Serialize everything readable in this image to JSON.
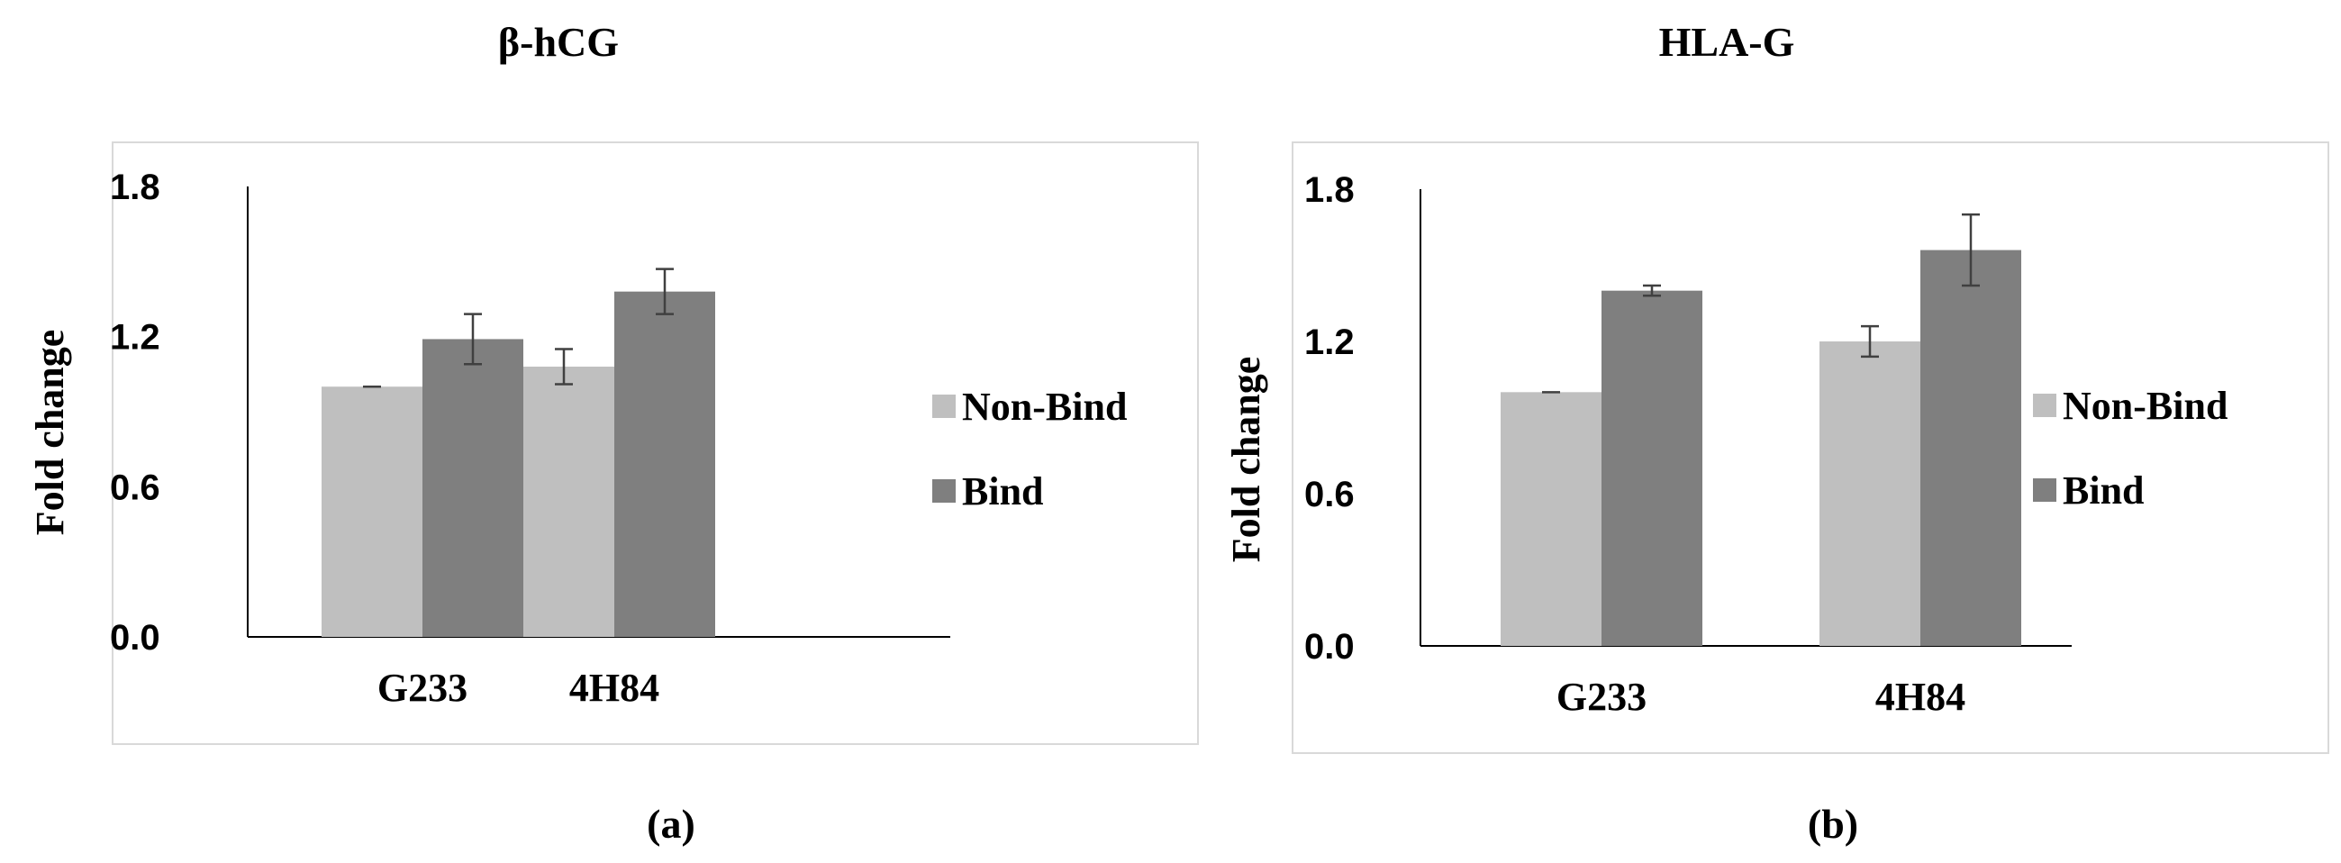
{
  "chart_data": [
    {
      "type": "bar",
      "title": "β-hCG",
      "caption": "(a)",
      "ylabel": "Fold change",
      "xlabel": "",
      "ylim": [
        0,
        1.8
      ],
      "yticks": [
        "0.0",
        "0.6",
        "1.2",
        "1.8"
      ],
      "categories": [
        "G233",
        "4H84"
      ],
      "legend_position": "right",
      "series": [
        {
          "name": "Non-Bind",
          "color": "#bfbfbf",
          "values": [
            1.0,
            1.08
          ],
          "errors": [
            0.0,
            0.07
          ]
        },
        {
          "name": "Bind",
          "color": "#7f7f7f",
          "values": [
            1.19,
            1.38
          ],
          "errors": [
            0.1,
            0.09
          ]
        }
      ]
    },
    {
      "type": "bar",
      "title": "HLA-G",
      "caption": "(b)",
      "ylabel": "Fold change",
      "xlabel": "",
      "ylim": [
        0,
        1.8
      ],
      "yticks": [
        "0.0",
        "0.6",
        "1.2",
        "1.8"
      ],
      "categories": [
        "G233",
        "4H84"
      ],
      "legend_position": "right",
      "series": [
        {
          "name": "Non-Bind",
          "color": "#bfbfbf",
          "values": [
            1.0,
            1.2
          ],
          "errors": [
            0.0,
            0.06
          ]
        },
        {
          "name": "Bind",
          "color": "#7f7f7f",
          "values": [
            1.4,
            1.56
          ],
          "errors": [
            0.02,
            0.14
          ]
        }
      ]
    }
  ]
}
